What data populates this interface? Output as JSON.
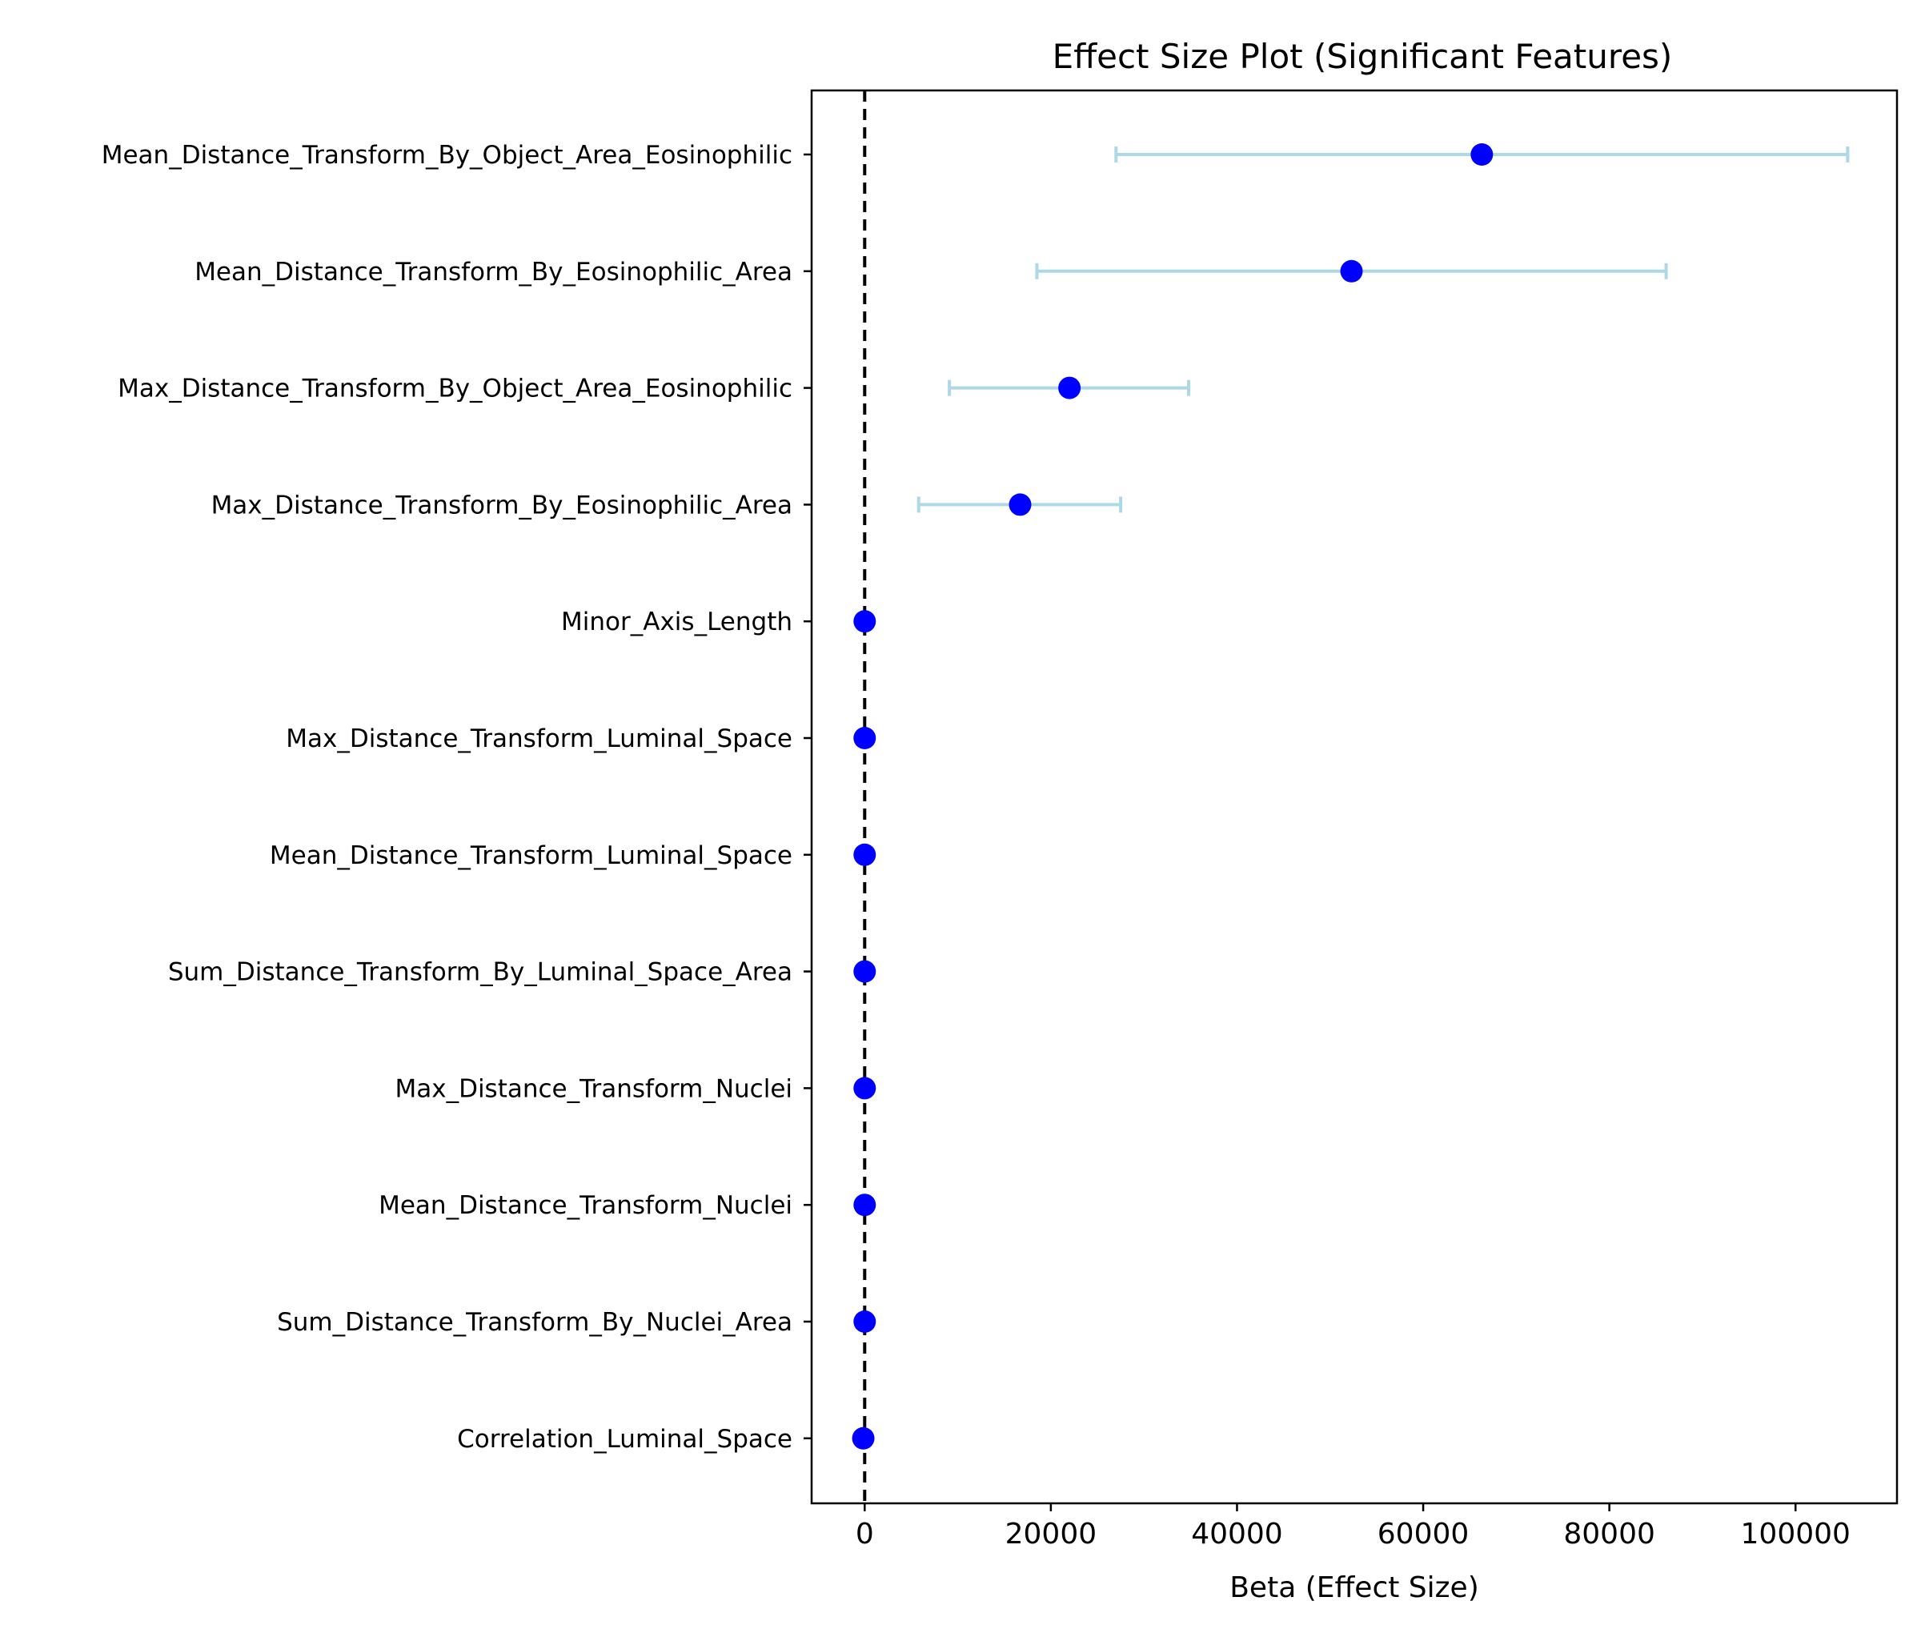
{
  "chart_data": {
    "type": "scatter",
    "title": "Effect Size Plot (Significant Features)",
    "xlabel": "Beta (Effect Size)",
    "ylabel": "",
    "xlim": [
      -5700,
      110900
    ],
    "xticks": [
      0,
      20000,
      40000,
      60000,
      80000,
      100000
    ],
    "xtick_labels": [
      "0",
      "20000",
      "40000",
      "60000",
      "80000",
      "100000"
    ],
    "grid": false,
    "reference_line": {
      "x": 0,
      "style": "dashed",
      "color": "#000000"
    },
    "point_color": "#0000ff",
    "errorbar_color": "#add8e6",
    "features": [
      {
        "label": "Mean_Distance_Transform_By_Object_Area_Eosinophilic",
        "beta": 66300,
        "ci_low": 27000,
        "ci_high": 105600
      },
      {
        "label": "Mean_Distance_Transform_By_Eosinophilic_Area",
        "beta": 52300,
        "ci_low": 18500,
        "ci_high": 86100
      },
      {
        "label": "Max_Distance_Transform_By_Object_Area_Eosinophilic",
        "beta": 22000,
        "ci_low": 9100,
        "ci_high": 34800
      },
      {
        "label": "Max_Distance_Transform_By_Eosinophilic_Area",
        "beta": 16700,
        "ci_low": 5800,
        "ci_high": 27500
      },
      {
        "label": "Minor_Axis_Length",
        "beta": 0,
        "ci_low": 0,
        "ci_high": 0
      },
      {
        "label": "Max_Distance_Transform_Luminal_Space",
        "beta": 0,
        "ci_low": 0,
        "ci_high": 0
      },
      {
        "label": "Mean_Distance_Transform_Luminal_Space",
        "beta": 0,
        "ci_low": 0,
        "ci_high": 0
      },
      {
        "label": "Sum_Distance_Transform_By_Luminal_Space_Area",
        "beta": 0,
        "ci_low": 0,
        "ci_high": 0
      },
      {
        "label": "Max_Distance_Transform_Nuclei",
        "beta": 0,
        "ci_low": 0,
        "ci_high": 0
      },
      {
        "label": "Mean_Distance_Transform_Nuclei",
        "beta": 0,
        "ci_low": 0,
        "ci_high": 0
      },
      {
        "label": "Sum_Distance_Transform_By_Nuclei_Area",
        "beta": 0,
        "ci_low": 0,
        "ci_high": 0
      },
      {
        "label": "Correlation_Luminal_Space",
        "beta": -150,
        "ci_low": -150,
        "ci_high": -150
      }
    ]
  }
}
